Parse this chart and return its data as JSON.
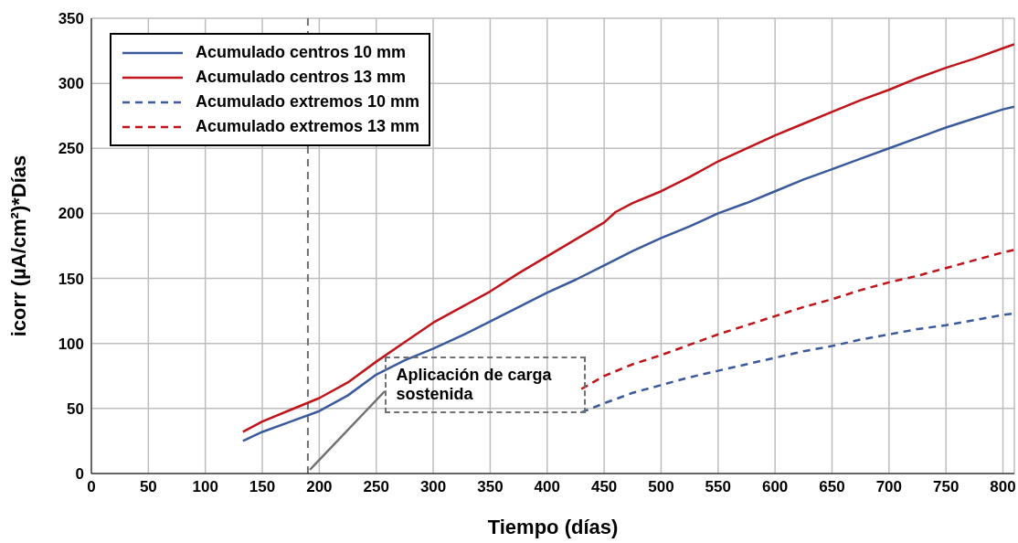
{
  "chart_data": {
    "type": "line",
    "xlabel": "Tiempo (días)",
    "ylabel": "icorr (µA/cm²)*Días",
    "xlim": [
      0,
      810
    ],
    "xticks": [
      0,
      50,
      100,
      150,
      200,
      250,
      300,
      350,
      400,
      450,
      500,
      550,
      600,
      650,
      700,
      750,
      800
    ],
    "ylim": [
      0,
      350
    ],
    "yticks": [
      0,
      50,
      100,
      150,
      200,
      250,
      300,
      350
    ],
    "grid": true,
    "legend": "top left",
    "series": [
      {
        "name": "Acumulado centros 10 mm",
        "color": "#3a5a9c",
        "line_style": "solid",
        "x": [
          133,
          150,
          175,
          200,
          225,
          250,
          275,
          300,
          325,
          350,
          375,
          400,
          425,
          450,
          475,
          500,
          525,
          550,
          575,
          600,
          625,
          650,
          675,
          700,
          725,
          750,
          775,
          800,
          810
        ],
        "values": [
          25,
          32,
          40,
          48,
          60,
          76,
          87,
          96,
          106,
          117,
          128,
          139,
          149,
          160,
          171,
          181,
          190,
          200,
          208,
          217,
          226,
          234,
          242,
          250,
          258,
          266,
          273,
          280,
          282
        ]
      },
      {
        "name": "Acumulado centros 13 mm",
        "color": "#c0141b",
        "line_style": "solid",
        "x": [
          133,
          150,
          175,
          200,
          225,
          250,
          275,
          300,
          325,
          350,
          375,
          400,
          425,
          450,
          460,
          475,
          500,
          525,
          550,
          575,
          600,
          625,
          650,
          675,
          700,
          725,
          750,
          775,
          800,
          810
        ],
        "values": [
          32,
          40,
          49,
          58,
          70,
          86,
          101,
          116,
          128,
          140,
          154,
          167,
          180,
          193,
          201,
          208,
          217,
          228,
          240,
          250,
          260,
          269,
          278,
          287,
          295,
          304,
          312,
          319,
          327,
          330
        ]
      },
      {
        "name": "Acumulado extremos 10 mm",
        "color": "#3a5a9c",
        "line_style": "dashed",
        "x": [
          430,
          450,
          475,
          500,
          525,
          550,
          575,
          600,
          625,
          650,
          675,
          700,
          725,
          750,
          775,
          800,
          810
        ],
        "values": [
          47,
          54,
          62,
          68,
          74,
          79,
          84,
          89,
          94,
          98,
          103,
          107,
          111,
          114,
          118,
          122,
          123
        ]
      },
      {
        "name": "Acumulado extremos 13 mm",
        "color": "#c0141b",
        "line_style": "dashed",
        "x": [
          430,
          450,
          475,
          500,
          525,
          550,
          575,
          600,
          625,
          650,
          675,
          700,
          725,
          750,
          775,
          800,
          810
        ],
        "values": [
          65,
          75,
          84,
          91,
          99,
          107,
          114,
          121,
          128,
          134,
          141,
          147,
          152,
          158,
          164,
          170,
          172
        ]
      }
    ],
    "ref_lines": [
      {
        "axis": "x",
        "value": 190,
        "color": "#707070",
        "line_style": "dashed"
      }
    ],
    "annotations": [
      {
        "text": "Aplicación de carga sostenida",
        "x": 192,
        "y": 3
      }
    ]
  }
}
